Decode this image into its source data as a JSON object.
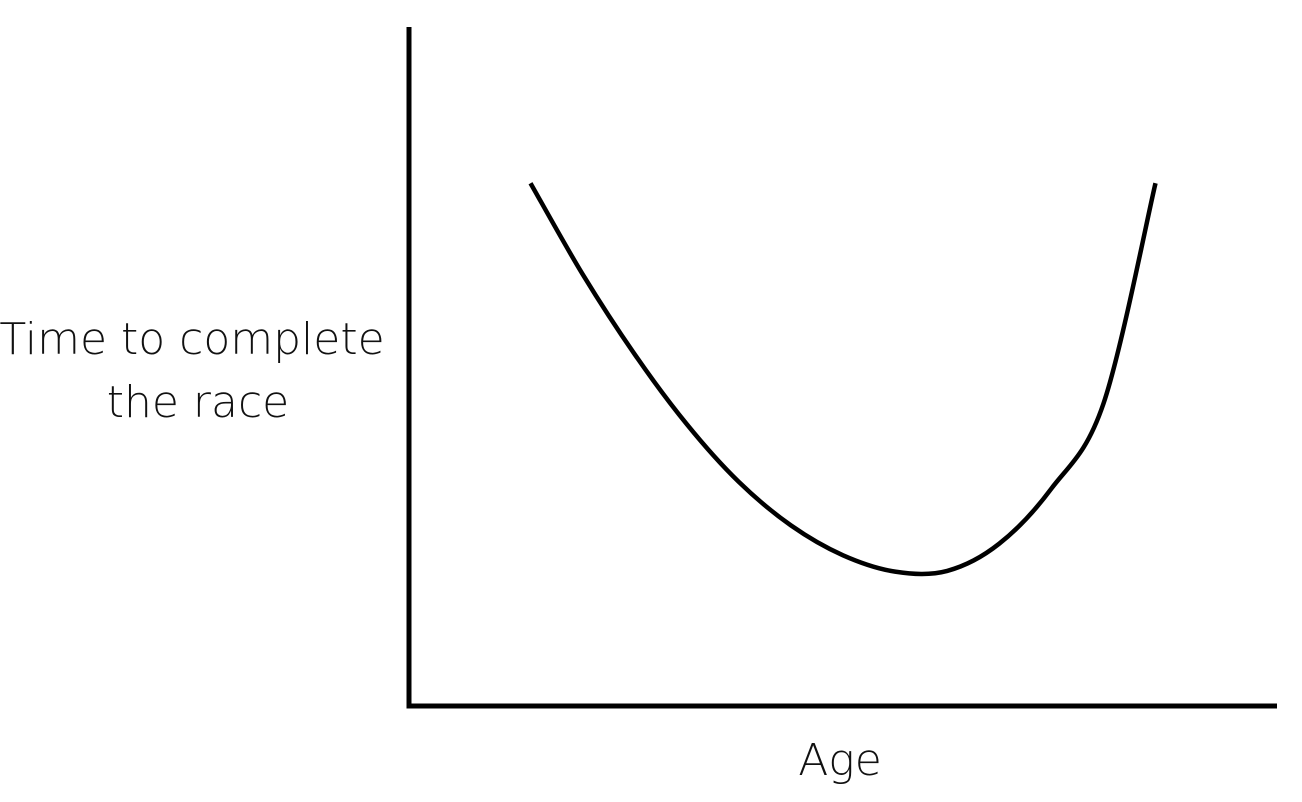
{
  "chart_data": {
    "type": "line",
    "title": "",
    "xlabel": "Age",
    "ylabel_lines": [
      "Time to complete",
      "the race"
    ],
    "x_ticks": [],
    "y_ticks": [],
    "grid": false,
    "legend": "none",
    "xlim": [
      0,
      100
    ],
    "ylim": [
      0,
      100
    ],
    "series": [
      {
        "x": [
          14,
          20,
          26,
          32,
          38,
          44,
          50,
          56,
          62,
          68,
          74,
          80,
          86
        ],
        "y": [
          77,
          63.6,
          51.8,
          41.5,
          33,
          26.6,
          22.2,
          19.8,
          19.9,
          23.9,
          32,
          44.5,
          77
        ],
        "color": "#000000"
      }
    ]
  }
}
